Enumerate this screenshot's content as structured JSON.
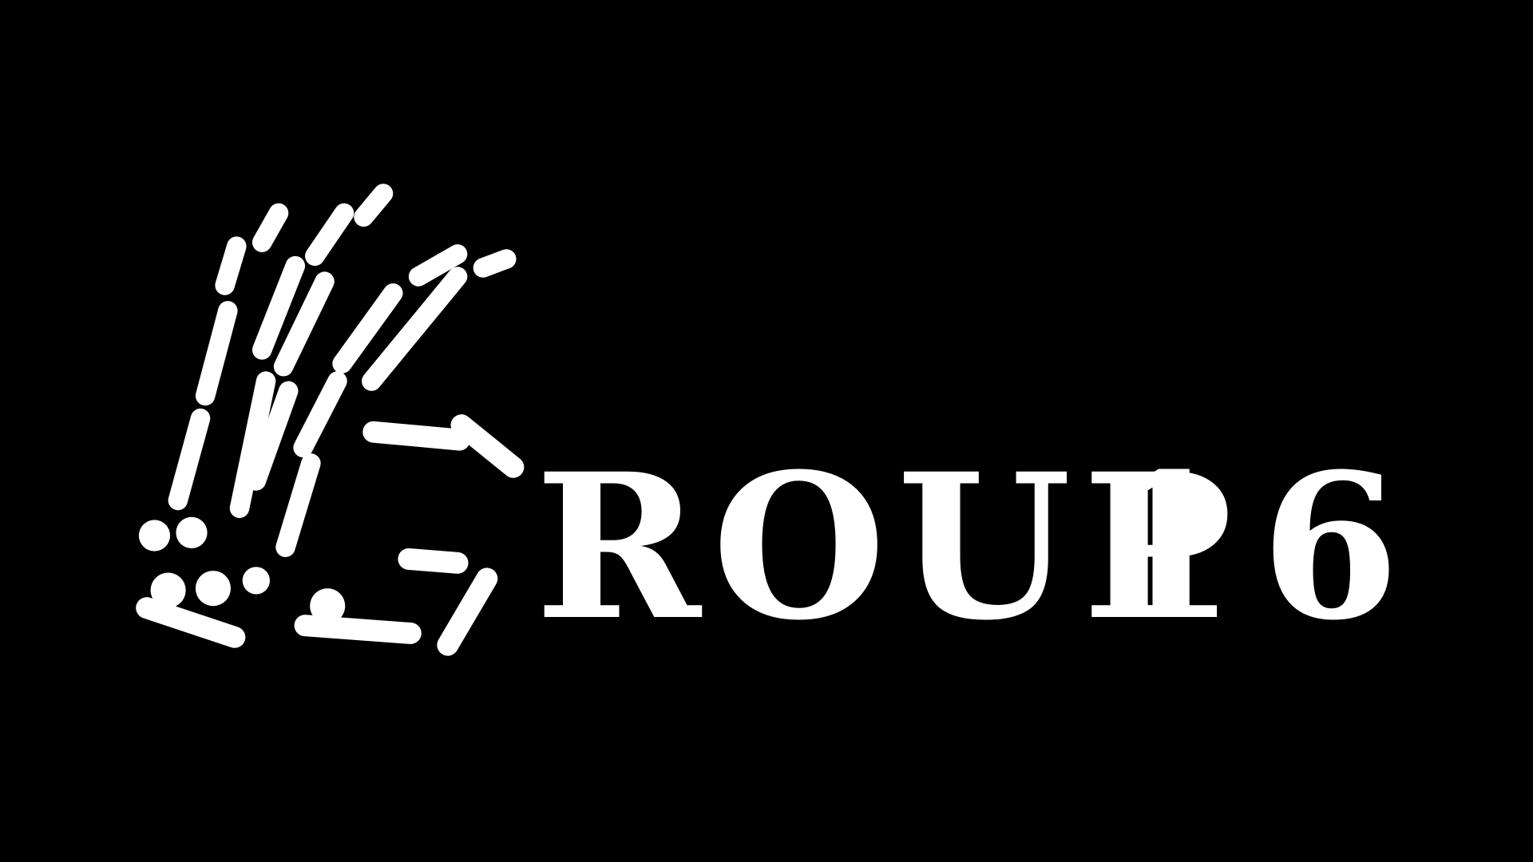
{
  "logo": {
    "word": "ROUP",
    "number": "16"
  }
}
